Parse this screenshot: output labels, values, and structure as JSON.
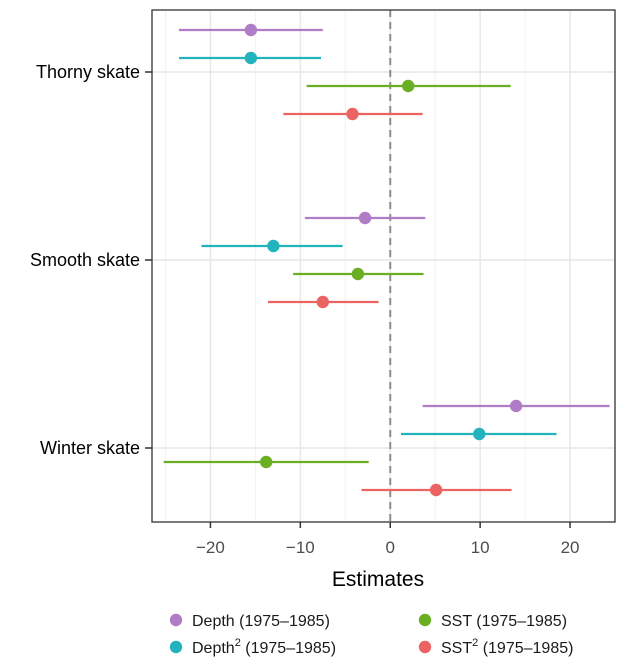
{
  "chart_data": {
    "type": "forest",
    "xlabel": "Estimates",
    "xlim": [
      -26.5,
      25
    ],
    "xticks": [
      -20,
      -10,
      0,
      10,
      20
    ],
    "xtick_labels": [
      "−20",
      "−10",
      "0",
      "10",
      "20"
    ],
    "reference_line": {
      "x": 0,
      "style": "dashed"
    },
    "grid": true,
    "legend_position": "bottom",
    "categories": [
      "Thorny skate",
      "Smooth skate",
      "Winter skate"
    ],
    "series": [
      {
        "name": "Depth (1975–1985)",
        "name_base": "Depth",
        "name_sup": "",
        "name_rest": " (1975–1985)",
        "color": "#B07CC6",
        "points": [
          {
            "category": "Thorny skate",
            "estimate": -15.5,
            "low": -23.5,
            "high": -7.5
          },
          {
            "category": "Smooth skate",
            "estimate": -2.8,
            "low": -9.5,
            "high": 3.9
          },
          {
            "category": "Winter skate",
            "estimate": 14.0,
            "low": 3.6,
            "high": 24.4
          }
        ]
      },
      {
        "name": "Depth2 (1975–1985)",
        "name_base": "Depth",
        "name_sup": "2",
        "name_rest": " (1975–1985)",
        "color": "#22B3BD",
        "points": [
          {
            "category": "Thorny skate",
            "estimate": -15.5,
            "low": -23.5,
            "high": -7.7
          },
          {
            "category": "Smooth skate",
            "estimate": -13.0,
            "low": -21.0,
            "high": -5.3
          },
          {
            "category": "Winter skate",
            "estimate": 9.9,
            "low": 1.2,
            "high": 18.5
          }
        ]
      },
      {
        "name": "SST (1975–1985)",
        "name_base": "SST",
        "name_sup": "",
        "name_rest": " (1975–1985)",
        "color": "#6AAF23",
        "points": [
          {
            "category": "Thorny skate",
            "estimate": 2.0,
            "low": -9.3,
            "high": 13.4
          },
          {
            "category": "Smooth skate",
            "estimate": -3.6,
            "low": -10.8,
            "high": 3.7
          },
          {
            "category": "Winter skate",
            "estimate": -13.8,
            "low": -25.2,
            "high": -2.4
          }
        ]
      },
      {
        "name": "SST2 (1975–1985)",
        "name_base": "SST",
        "name_sup": "2",
        "name_rest": " (1975–1985)",
        "color": "#EB6461",
        "points": [
          {
            "category": "Thorny skate",
            "estimate": -4.2,
            "low": -11.9,
            "high": 3.6
          },
          {
            "category": "Smooth skate",
            "estimate": -7.5,
            "low": -13.6,
            "high": -1.3
          },
          {
            "category": "Winter skate",
            "estimate": 5.1,
            "low": -3.2,
            "high": 13.5
          }
        ]
      }
    ]
  }
}
